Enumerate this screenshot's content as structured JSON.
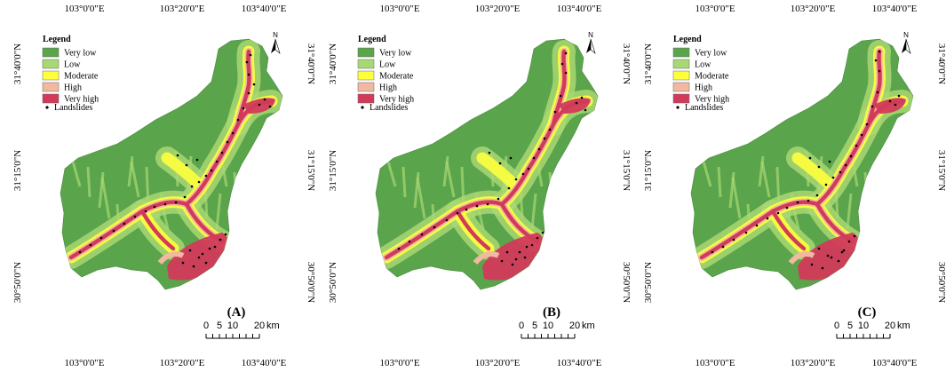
{
  "legend": {
    "title": "Legend",
    "items": [
      {
        "label": "Very low",
        "color": "#5aa44c"
      },
      {
        "label": "Low",
        "color": "#a9d873"
      },
      {
        "label": "Moderate",
        "color": "#ffff3c"
      },
      {
        "label": "High",
        "color": "#f2b9a0"
      },
      {
        "label": "Very high",
        "color": "#d23a5a"
      }
    ],
    "points_label": "Landslides"
  },
  "axes": {
    "x_ticks": [
      "103°0'0\"E",
      "103°20'0\"E",
      "103°40'0\"E"
    ],
    "y_ticks": [
      "31°40'0\"N",
      "31°15'0\"N",
      "30°50'0\"N"
    ]
  },
  "north_label": "N",
  "scale": {
    "ticks": [
      "0",
      "5",
      "10",
      "20"
    ],
    "unit": "km"
  },
  "panels": [
    {
      "label": "(A)"
    },
    {
      "label": "(B)"
    },
    {
      "label": "(C)"
    }
  ]
}
